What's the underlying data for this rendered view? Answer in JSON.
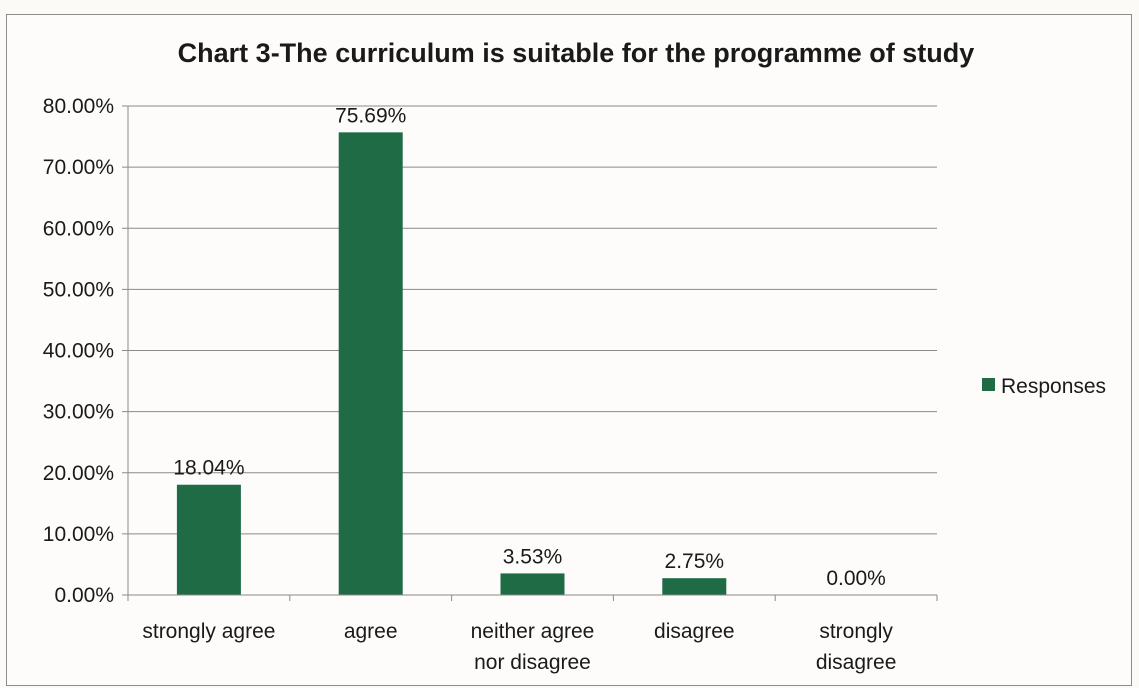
{
  "chart_data": {
    "type": "bar",
    "title": "Chart 3-The curriculum is suitable for the programme of study",
    "categories": [
      [
        "strongly agree"
      ],
      [
        "agree"
      ],
      [
        "neither agree",
        "nor disagree"
      ],
      [
        "disagree"
      ],
      [
        "strongly",
        "disagree"
      ]
    ],
    "series": [
      {
        "name": "Responses",
        "values": [
          18.04,
          75.69,
          3.53,
          2.75,
          0.0
        ],
        "labels": [
          "18.04%",
          "75.69%",
          "3.53%",
          "2.75%",
          "0.00%"
        ],
        "color": "#1e6b46"
      }
    ],
    "yticks": [
      "0.00%",
      "10.00%",
      "20.00%",
      "30.00%",
      "40.00%",
      "50.00%",
      "60.00%",
      "70.00%",
      "80.00%"
    ],
    "ylim": [
      0,
      80
    ],
    "grid": true,
    "legend_position": "right",
    "xlabel": "",
    "ylabel": ""
  }
}
